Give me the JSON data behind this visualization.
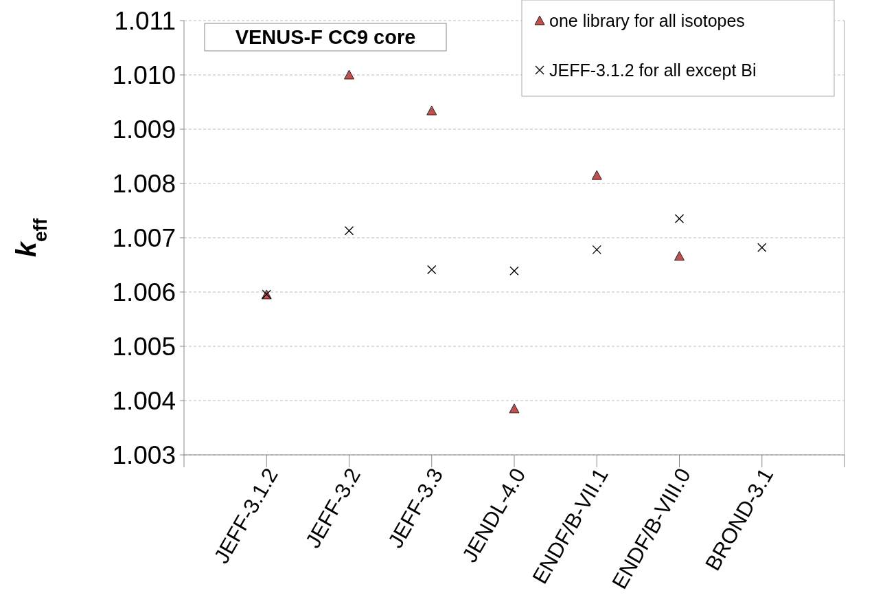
{
  "chart_data": {
    "type": "scatter",
    "title": "VENUS-F CC9 core",
    "ylabel": "k$_{eff}$",
    "categories": [
      "JEFF-3.1.2",
      "JEFF-3.2",
      "JEFF-3.3",
      "JENDL-4.0",
      "ENDF/B-VII.1",
      "ENDF/B-VIII.0",
      "BROND-3.1"
    ],
    "series": [
      {
        "name": "one library for all isotopes",
        "color": "#c0504d",
        "marker": "triangle",
        "values": [
          1.00595,
          1.01,
          1.00934,
          1.00385,
          1.00815,
          1.00666,
          null
        ]
      },
      {
        "name": "JEFF-3.1.2 for all except Bi",
        "color": "#000000",
        "marker": "cross",
        "values": [
          1.00596,
          1.00713,
          1.00641,
          1.00639,
          1.00678,
          1.00735,
          1.00682
        ]
      }
    ],
    "ylim": [
      1.003,
      1.011
    ],
    "yticks": [
      1.003,
      1.004,
      1.005,
      1.006,
      1.007,
      1.008,
      1.009,
      {
        "value": 1.01,
        "label": "1.010"
      },
      1.011
    ],
    "grid": "y",
    "legend": "top right"
  }
}
